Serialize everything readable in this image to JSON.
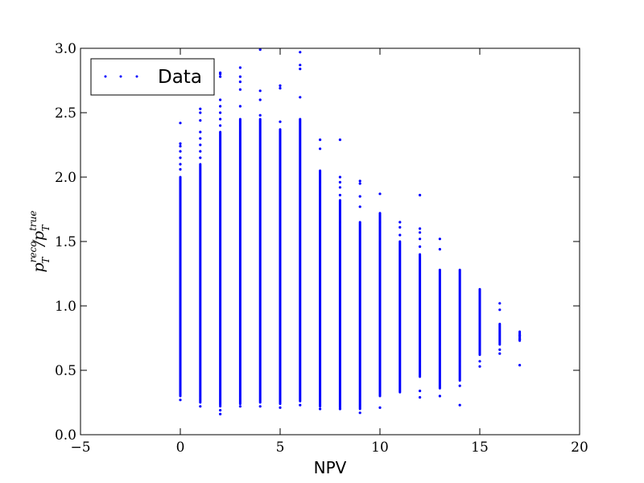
{
  "chart_data": {
    "type": "scatter",
    "xlabel": "NPV",
    "ylabel": {
      "base": "p",
      "sub": "T",
      "sup_num": "reco",
      "sup_den": "true",
      "slash": "/"
    },
    "xlim": [
      -5,
      20
    ],
    "ylim": [
      0.0,
      3.0
    ],
    "xticks": [
      -5,
      0,
      5,
      10,
      15,
      20
    ],
    "xtick_labels": [
      "−5",
      "0",
      "5",
      "10",
      "15",
      "20"
    ],
    "yticks": [
      0.0,
      0.5,
      1.0,
      1.5,
      2.0,
      2.5,
      3.0
    ],
    "ytick_labels": [
      "0.0",
      "0.5",
      "1.0",
      "1.5",
      "2.0",
      "2.5",
      "3.0"
    ],
    "grid": false,
    "legend_position": "top-left",
    "series": [
      {
        "name": "Data",
        "color": "#0000ff",
        "marker": "dot",
        "columns": [
          {
            "x": 0,
            "dense_range": [
              0.3,
              2.0
            ],
            "outliers": [
              0.27,
              2.06,
              2.1,
              2.15,
              2.2,
              2.24,
              2.26,
              2.42
            ]
          },
          {
            "x": 1,
            "dense_range": [
              0.25,
              2.1
            ],
            "outliers": [
              0.22,
              2.15,
              2.2,
              2.25,
              2.3,
              2.35,
              2.44,
              2.5,
              2.53
            ]
          },
          {
            "x": 2,
            "dense_range": [
              0.22,
              2.35
            ],
            "outliers": [
              0.16,
              0.19,
              2.4,
              2.45,
              2.5,
              2.55,
              2.6,
              2.78,
              2.8,
              2.81
            ]
          },
          {
            "x": 3,
            "dense_range": [
              0.24,
              2.45
            ],
            "outliers": [
              0.22,
              2.55,
              2.68,
              2.74,
              2.78,
              2.85
            ]
          },
          {
            "x": 4,
            "dense_range": [
              0.25,
              2.45
            ],
            "outliers": [
              0.22,
              2.48,
              2.6,
              2.67,
              2.99
            ]
          },
          {
            "x": 5,
            "dense_range": [
              0.24,
              2.37
            ],
            "outliers": [
              0.21,
              2.43,
              2.69,
              2.71
            ]
          },
          {
            "x": 6,
            "dense_range": [
              0.26,
              2.45
            ],
            "outliers": [
              0.23,
              2.62,
              2.84,
              2.87,
              2.97
            ]
          },
          {
            "x": 7,
            "dense_range": [
              0.22,
              2.05
            ],
            "outliers": [
              0.2,
              2.22,
              2.29
            ]
          },
          {
            "x": 8,
            "dense_range": [
              0.21,
              1.82
            ],
            "outliers": [
              0.2,
              1.86,
              1.92,
              1.96,
              2.0,
              2.29
            ]
          },
          {
            "x": 9,
            "dense_range": [
              0.2,
              1.65
            ],
            "outliers": [
              0.17,
              1.77,
              1.85,
              1.95,
              1.97
            ]
          },
          {
            "x": 10,
            "dense_range": [
              0.3,
              1.72
            ],
            "outliers": [
              0.21,
              1.87
            ]
          },
          {
            "x": 11,
            "dense_range": [
              0.33,
              1.5
            ],
            "outliers": [
              1.55,
              1.61,
              1.65
            ]
          },
          {
            "x": 12,
            "dense_range": [
              0.45,
              1.4
            ],
            "outliers": [
              0.29,
              0.34,
              1.46,
              1.52,
              1.57,
              1.6,
              1.86
            ]
          },
          {
            "x": 13,
            "dense_range": [
              0.36,
              1.28
            ],
            "outliers": [
              0.3,
              1.44,
              1.52
            ]
          },
          {
            "x": 14,
            "dense_range": [
              0.42,
              1.28
            ],
            "outliers": [
              0.23,
              0.38
            ]
          },
          {
            "x": 15,
            "dense_range": [
              0.62,
              1.13
            ],
            "outliers": [
              0.53,
              0.57
            ]
          },
          {
            "x": 16,
            "dense_range": [
              0.7,
              0.86
            ],
            "outliers": [
              0.63,
              0.66,
              0.97,
              1.02
            ]
          },
          {
            "x": 17,
            "dense_range": [
              0.73,
              0.8
            ],
            "outliers": [
              0.54,
              0.74,
              0.77
            ]
          }
        ]
      }
    ]
  }
}
